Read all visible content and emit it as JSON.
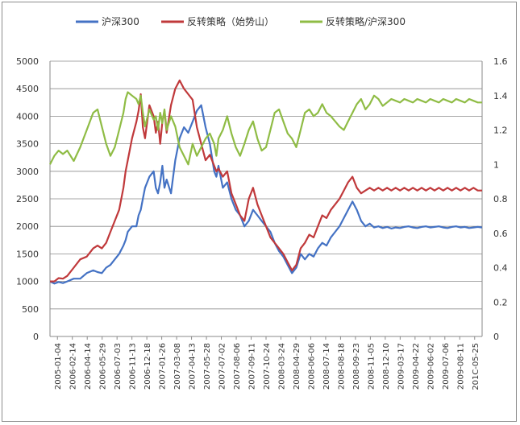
{
  "chart_data": {
    "type": "line",
    "title": "",
    "xlabel": "",
    "ylabel": "",
    "y_left": {
      "min": 0,
      "max": 5000,
      "ticks": [
        "5000",
        "4500",
        "4000",
        "3500",
        "3000",
        "2500",
        "2000",
        "1500",
        "1000",
        "500",
        "0"
      ]
    },
    "y_right": {
      "min": 0,
      "max": 1.6,
      "ticks": [
        "1.6",
        "1.4",
        "1.2",
        "1",
        "0.8",
        "0.6",
        "0.4",
        "0.2",
        "0"
      ]
    },
    "x_tick_labels": [
      "2005-01-04",
      "2006-02-14",
      "2006-04-14",
      "2006-05-29",
      "2006-07-03",
      "2006-11-13",
      "2006-12-18",
      "2007-01-26",
      "2007-03-08",
      "2007-04-13",
      "2007-05-28",
      "2007-07-02",
      "2007-08-06",
      "2007-09-11",
      "2007-10-24",
      "2008-03-24",
      "2008-04-29",
      "2008-06-06",
      "2008-07-14",
      "2008-08-18",
      "2008-09-23",
      "2008-11-05",
      "2008-12-10",
      "2009-03-17",
      "2009-04-22",
      "2009-06-02",
      "2009-07-06",
      "2009-08-11",
      "201C-05-25"
    ],
    "grid": "horizontal",
    "legend_position": "top",
    "series": [
      {
        "name": "沪深300",
        "axis": "left",
        "color": "#4472c4",
        "x": [
          0,
          10,
          20,
          30,
          40,
          55,
          70,
          85,
          100,
          110,
          120,
          130,
          140,
          150,
          160,
          170,
          175,
          180,
          190,
          200,
          205,
          210,
          215,
          220,
          230,
          240,
          245,
          250,
          255,
          260,
          265,
          270,
          280,
          290,
          300,
          310,
          320,
          330,
          340,
          350,
          360,
          370,
          380,
          385,
          390,
          400,
          410,
          420,
          430,
          440,
          450,
          460,
          470,
          480,
          490,
          500,
          510,
          520,
          530,
          540,
          550,
          560,
          570,
          580,
          590,
          600,
          610,
          620,
          630,
          640,
          650,
          660,
          670,
          680,
          690,
          700,
          710,
          720,
          730,
          740,
          750,
          760,
          770,
          780,
          790,
          800,
          810,
          820,
          830,
          840,
          850,
          860,
          870,
          880,
          890,
          900,
          910,
          920,
          930,
          940,
          950,
          960,
          970,
          980,
          990,
          1000
        ],
        "values": [
          1000,
          960,
          990,
          970,
          1000,
          1050,
          1050,
          1150,
          1200,
          1170,
          1150,
          1250,
          1300,
          1400,
          1500,
          1650,
          1750,
          1900,
          2000,
          2000,
          2200,
          2300,
          2500,
          2700,
          2900,
          3000,
          2700,
          2600,
          2800,
          3100,
          2700,
          2850,
          2600,
          3200,
          3600,
          3800,
          3700,
          3900,
          4100,
          4200,
          3800,
          3500,
          3000,
          2900,
          3100,
          2700,
          2800,
          2500,
          2300,
          2200,
          2000,
          2100,
          2300,
          2200,
          2100,
          2000,
          1900,
          1700,
          1550,
          1450,
          1300,
          1150,
          1250,
          1500,
          1400,
          1500,
          1450,
          1600,
          1700,
          1650,
          1800,
          1900,
          2000,
          2150,
          2300,
          2450,
          2300,
          2100,
          2000,
          2050,
          1980,
          2000,
          1970,
          1990,
          1960,
          1980,
          1970,
          1990,
          2000,
          1980,
          1970,
          1990,
          2000,
          1980,
          1990,
          2000,
          1980,
          1970,
          1990,
          2000,
          1980,
          1990,
          1970,
          1980,
          1990,
          1980
        ]
      },
      {
        "name": "反转策略（始势山）",
        "axis": "left",
        "color": "#c0393b",
        "x": [
          0,
          10,
          20,
          30,
          40,
          55,
          70,
          85,
          100,
          110,
          120,
          130,
          140,
          150,
          160,
          170,
          175,
          180,
          190,
          200,
          205,
          210,
          215,
          220,
          230,
          240,
          245,
          250,
          255,
          260,
          265,
          270,
          280,
          290,
          300,
          310,
          320,
          330,
          340,
          350,
          360,
          370,
          380,
          385,
          390,
          400,
          410,
          420,
          430,
          440,
          450,
          460,
          470,
          480,
          490,
          500,
          510,
          520,
          530,
          540,
          550,
          560,
          570,
          580,
          590,
          600,
          610,
          620,
          630,
          640,
          650,
          660,
          670,
          680,
          690,
          700,
          710,
          720,
          730,
          740,
          750,
          760,
          770,
          780,
          790,
          800,
          810,
          820,
          830,
          840,
          850,
          860,
          870,
          880,
          890,
          900,
          910,
          920,
          930,
          940,
          950,
          960,
          970,
          980,
          990,
          1000
        ],
        "values": [
          1000,
          1000,
          1060,
          1050,
          1100,
          1250,
          1400,
          1450,
          1600,
          1650,
          1600,
          1700,
          1900,
          2100,
          2300,
          2700,
          3000,
          3200,
          3600,
          3900,
          4100,
          4400,
          3800,
          3600,
          4200,
          4000,
          3700,
          3900,
          3500,
          3900,
          4100,
          3700,
          4200,
          4500,
          4650,
          4500,
          4400,
          4300,
          3800,
          3500,
          3200,
          3300,
          3100,
          3000,
          3050,
          2900,
          3000,
          2600,
          2400,
          2200,
          2100,
          2500,
          2700,
          2400,
          2200,
          2000,
          1800,
          1700,
          1600,
          1500,
          1350,
          1200,
          1300,
          1600,
          1700,
          1850,
          1800,
          2000,
          2200,
          2150,
          2300,
          2400,
          2500,
          2650,
          2800,
          2900,
          2700,
          2600,
          2650,
          2700,
          2650,
          2700,
          2650,
          2700,
          2650,
          2700,
          2650,
          2700,
          2650,
          2700,
          2650,
          2700,
          2650,
          2700,
          2650,
          2700,
          2650,
          2700,
          2650,
          2700,
          2650,
          2700,
          2650,
          2700,
          2650,
          2650
        ]
      },
      {
        "name": "反转策略/沪深300",
        "axis": "right",
        "color": "#8fbc45",
        "x": [
          0,
          10,
          20,
          30,
          40,
          55,
          70,
          85,
          100,
          110,
          120,
          130,
          140,
          150,
          160,
          170,
          175,
          180,
          190,
          200,
          205,
          210,
          215,
          220,
          230,
          240,
          245,
          250,
          255,
          260,
          265,
          270,
          280,
          290,
          300,
          310,
          320,
          330,
          340,
          350,
          360,
          370,
          380,
          385,
          390,
          400,
          410,
          420,
          430,
          440,
          450,
          460,
          470,
          480,
          490,
          500,
          510,
          520,
          530,
          540,
          550,
          560,
          570,
          580,
          590,
          600,
          610,
          620,
          630,
          640,
          650,
          660,
          670,
          680,
          690,
          700,
          710,
          720,
          730,
          740,
          750,
          760,
          770,
          780,
          790,
          800,
          810,
          820,
          830,
          840,
          850,
          860,
          870,
          880,
          890,
          900,
          910,
          920,
          930,
          940,
          950,
          960,
          970,
          980,
          990,
          1000
        ],
        "values": [
          1.0,
          1.05,
          1.08,
          1.06,
          1.08,
          1.02,
          1.1,
          1.2,
          1.3,
          1.32,
          1.22,
          1.12,
          1.05,
          1.1,
          1.2,
          1.3,
          1.38,
          1.42,
          1.4,
          1.38,
          1.35,
          1.4,
          1.3,
          1.22,
          1.32,
          1.26,
          1.28,
          1.2,
          1.3,
          1.24,
          1.32,
          1.2,
          1.28,
          1.22,
          1.1,
          1.05,
          1.0,
          1.12,
          1.05,
          1.1,
          1.15,
          1.18,
          1.12,
          1.05,
          1.15,
          1.2,
          1.28,
          1.18,
          1.1,
          1.05,
          1.12,
          1.2,
          1.25,
          1.15,
          1.08,
          1.1,
          1.2,
          1.3,
          1.32,
          1.25,
          1.18,
          1.15,
          1.1,
          1.2,
          1.3,
          1.32,
          1.28,
          1.3,
          1.35,
          1.3,
          1.28,
          1.25,
          1.22,
          1.2,
          1.25,
          1.3,
          1.35,
          1.38,
          1.32,
          1.35,
          1.4,
          1.38,
          1.34,
          1.36,
          1.38,
          1.37,
          1.36,
          1.38,
          1.37,
          1.36,
          1.38,
          1.37,
          1.36,
          1.38,
          1.37,
          1.36,
          1.38,
          1.37,
          1.36,
          1.38,
          1.37,
          1.36,
          1.38,
          1.37,
          1.36,
          1.36
        ]
      }
    ]
  }
}
